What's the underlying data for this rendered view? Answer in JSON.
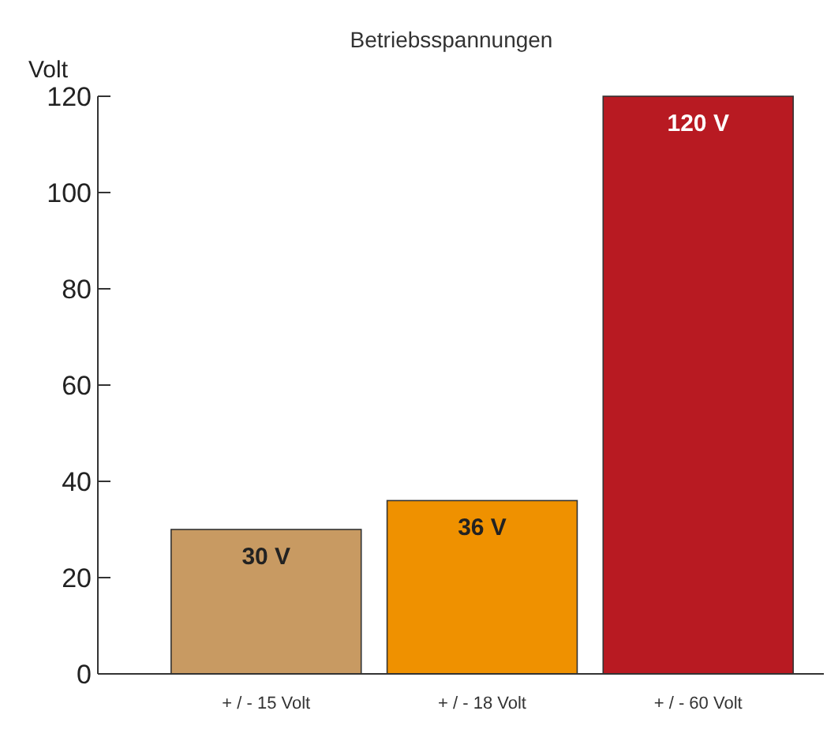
{
  "chart_data": {
    "type": "bar",
    "title": "Betriebsspannungen",
    "ylabel": "Volt",
    "categories": [
      "+ / - 15 Volt",
      "+ / - 18 Volt",
      "+ / - 60 Volt"
    ],
    "values": [
      30,
      36,
      120
    ],
    "colors": [
      "#c89a62",
      "#ef9100",
      "#b81a22"
    ],
    "value_labels": [
      "30 V",
      "36 V",
      "120 V"
    ],
    "ylim": [
      0,
      120
    ],
    "yticks": [
      0,
      20,
      40,
      60,
      80,
      100,
      120
    ],
    "grid": false
  }
}
